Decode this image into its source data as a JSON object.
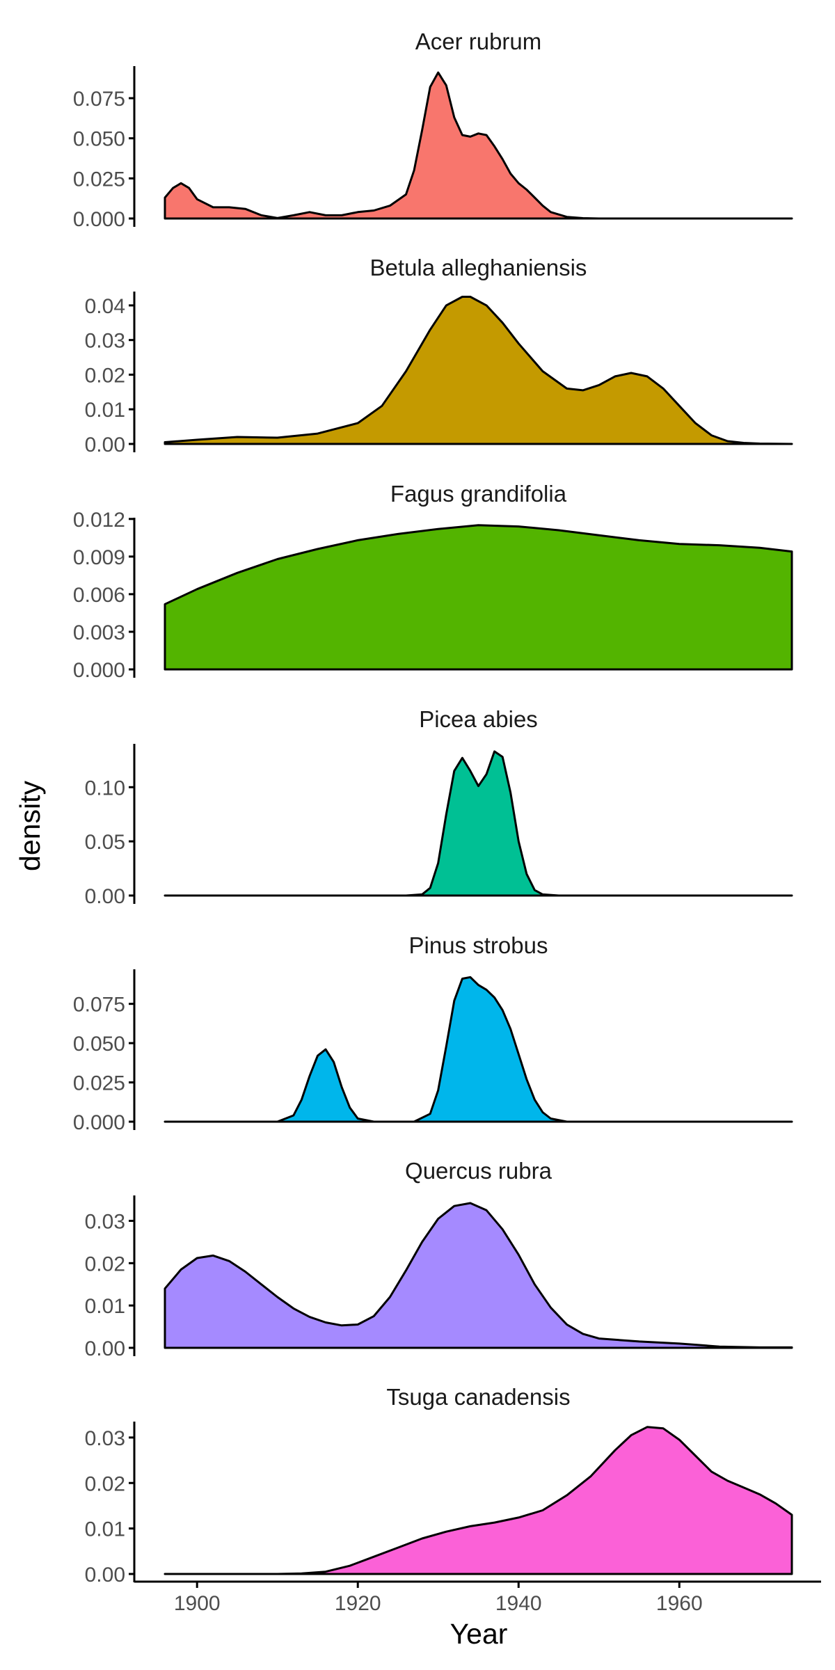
{
  "chart_data": {
    "type": "area",
    "xlabel": "Year",
    "ylabel": "density",
    "xlim": [
      1896,
      1974
    ],
    "x_ticks": [
      1900,
      1920,
      1940,
      1960
    ],
    "x_tick_labels": [
      "1900",
      "1920",
      "1940",
      "1960"
    ],
    "grid": false,
    "legend": "none",
    "panels": [
      {
        "name": "Acer rubrum",
        "color": "#F8766D",
        "ylim": [
          0,
          0.095
        ],
        "y_ticks": [
          0,
          0.025,
          0.05,
          0.075
        ],
        "y_tick_labels": [
          "0.000",
          "0.025",
          "0.050",
          "0.075"
        ],
        "x": [
          1896,
          1897,
          1898,
          1899,
          1900,
          1902,
          1904,
          1906,
          1908,
          1910,
          1912,
          1914,
          1916,
          1918,
          1920,
          1922,
          1924,
          1926,
          1927,
          1928,
          1929,
          1930,
          1931,
          1932,
          1933,
          1934,
          1935,
          1936,
          1937,
          1938,
          1939,
          1940,
          1941,
          1942,
          1943,
          1944,
          1946,
          1948,
          1950,
          1960,
          1974
        ],
        "y": [
          0.013,
          0.019,
          0.022,
          0.019,
          0.012,
          0.007,
          0.007,
          0.006,
          0.002,
          0.0003,
          0.002,
          0.004,
          0.002,
          0.002,
          0.004,
          0.005,
          0.008,
          0.015,
          0.03,
          0.055,
          0.082,
          0.091,
          0.083,
          0.063,
          0.052,
          0.051,
          0.053,
          0.052,
          0.045,
          0.037,
          0.028,
          0.022,
          0.018,
          0.013,
          0.008,
          0.004,
          0.001,
          0.0002,
          0,
          0,
          0
        ]
      },
      {
        "name": "Betula alleghaniensis",
        "color": "#C49A00",
        "ylim": [
          0,
          0.044
        ],
        "y_ticks": [
          0,
          0.01,
          0.02,
          0.03,
          0.04
        ],
        "y_tick_labels": [
          "0.00",
          "0.01",
          "0.02",
          "0.03",
          "0.04"
        ],
        "x": [
          1896,
          1900,
          1905,
          1910,
          1915,
          1920,
          1923,
          1926,
          1929,
          1931,
          1933,
          1934,
          1936,
          1938,
          1940,
          1943,
          1946,
          1948,
          1950,
          1952,
          1954,
          1956,
          1958,
          1960,
          1962,
          1964,
          1966,
          1968,
          1970,
          1974
        ],
        "y": [
          0.0005,
          0.0012,
          0.002,
          0.0018,
          0.003,
          0.006,
          0.011,
          0.021,
          0.033,
          0.04,
          0.0425,
          0.0425,
          0.04,
          0.035,
          0.029,
          0.021,
          0.016,
          0.0155,
          0.017,
          0.0195,
          0.0205,
          0.0195,
          0.016,
          0.011,
          0.006,
          0.0025,
          0.0008,
          0.0003,
          0.0001,
          0
        ]
      },
      {
        "name": "Fagus grandifolia",
        "color": "#53B400",
        "ylim": [
          0,
          0.0121
        ],
        "y_ticks": [
          0,
          0.003,
          0.006,
          0.009,
          0.012
        ],
        "y_tick_labels": [
          "0.000",
          "0.003",
          "0.006",
          "0.009",
          "0.012"
        ],
        "x": [
          1896,
          1900,
          1905,
          1910,
          1915,
          1920,
          1925,
          1930,
          1935,
          1940,
          1945,
          1950,
          1955,
          1960,
          1965,
          1970,
          1974
        ],
        "y": [
          0.0052,
          0.0064,
          0.0077,
          0.0088,
          0.0096,
          0.0103,
          0.0108,
          0.0112,
          0.0115,
          0.0114,
          0.0111,
          0.0107,
          0.0103,
          0.01,
          0.0099,
          0.0097,
          0.0094
        ]
      },
      {
        "name": "Picea abies",
        "color": "#00C094",
        "ylim": [
          0,
          0.14
        ],
        "y_ticks": [
          0,
          0.05,
          0.1
        ],
        "y_tick_labels": [
          "0.00",
          "0.05",
          "0.10"
        ],
        "x": [
          1896,
          1926,
          1928,
          1929,
          1930,
          1931,
          1932,
          1933,
          1934,
          1935,
          1936,
          1937,
          1938,
          1939,
          1940,
          1941,
          1942,
          1943,
          1945,
          1974
        ],
        "y": [
          0,
          0,
          0.001,
          0.007,
          0.03,
          0.075,
          0.115,
          0.127,
          0.115,
          0.101,
          0.112,
          0.133,
          0.128,
          0.095,
          0.05,
          0.02,
          0.005,
          0.001,
          0,
          0
        ]
      },
      {
        "name": "Pinus strobus",
        "color": "#00B6EB",
        "ylim": [
          0,
          0.097
        ],
        "y_ticks": [
          0,
          0.025,
          0.05,
          0.075
        ],
        "y_tick_labels": [
          "0.000",
          "0.025",
          "0.050",
          "0.075"
        ],
        "x": [
          1896,
          1910,
          1912,
          1913,
          1914,
          1915,
          1916,
          1917,
          1918,
          1919,
          1920,
          1922,
          1927,
          1929,
          1930,
          1931,
          1932,
          1933,
          1934,
          1935,
          1936,
          1937,
          1938,
          1939,
          1940,
          1941,
          1942,
          1943,
          1944,
          1946,
          1974
        ],
        "y": [
          0,
          0,
          0.004,
          0.014,
          0.029,
          0.042,
          0.046,
          0.038,
          0.022,
          0.009,
          0.002,
          0,
          0,
          0.005,
          0.02,
          0.048,
          0.077,
          0.091,
          0.092,
          0.087,
          0.084,
          0.079,
          0.071,
          0.059,
          0.043,
          0.027,
          0.014,
          0.006,
          0.002,
          0,
          0
        ]
      },
      {
        "name": "Quercus rubra",
        "color": "#A58AFF",
        "ylim": [
          0,
          0.036
        ],
        "y_ticks": [
          0,
          0.01,
          0.02,
          0.03
        ],
        "y_tick_labels": [
          "0.00",
          "0.01",
          "0.02",
          "0.03"
        ],
        "x": [
          1896,
          1898,
          1900,
          1902,
          1904,
          1906,
          1908,
          1910,
          1912,
          1914,
          1916,
          1918,
          1920,
          1922,
          1924,
          1926,
          1928,
          1930,
          1932,
          1934,
          1936,
          1938,
          1940,
          1942,
          1944,
          1946,
          1948,
          1950,
          1955,
          1960,
          1965,
          1970,
          1974
        ],
        "y": [
          0.014,
          0.0185,
          0.0212,
          0.0218,
          0.0205,
          0.018,
          0.015,
          0.012,
          0.0093,
          0.0073,
          0.006,
          0.0053,
          0.0055,
          0.0075,
          0.012,
          0.0183,
          0.025,
          0.0305,
          0.0335,
          0.0342,
          0.0325,
          0.028,
          0.022,
          0.015,
          0.0095,
          0.0055,
          0.0033,
          0.0022,
          0.0015,
          0.001,
          0.0003,
          0.0001,
          0.0001
        ]
      },
      {
        "name": "Tsuga canadensis",
        "color": "#FB61D7",
        "ylim": [
          0,
          0.0335
        ],
        "y_ticks": [
          0,
          0.01,
          0.02,
          0.03
        ],
        "y_tick_labels": [
          "0.00",
          "0.01",
          "0.02",
          "0.03"
        ],
        "x": [
          1896,
          1900,
          1905,
          1910,
          1913,
          1916,
          1919,
          1922,
          1925,
          1928,
          1931,
          1934,
          1937,
          1940,
          1943,
          1946,
          1949,
          1952,
          1954,
          1956,
          1958,
          1960,
          1962,
          1964,
          1966,
          1968,
          1970,
          1972,
          1974
        ],
        "y": [
          0,
          0,
          0,
          0,
          0.0001,
          0.0005,
          0.0018,
          0.0038,
          0.0058,
          0.0078,
          0.0093,
          0.0105,
          0.0113,
          0.0124,
          0.014,
          0.0173,
          0.0215,
          0.0272,
          0.0305,
          0.0323,
          0.032,
          0.0295,
          0.026,
          0.0225,
          0.0205,
          0.019,
          0.0175,
          0.0155,
          0.013
        ]
      }
    ]
  }
}
